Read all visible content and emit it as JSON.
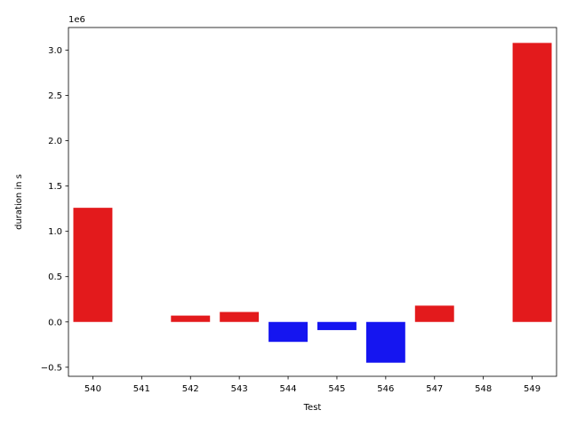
{
  "chart_data": {
    "type": "bar",
    "xlabel": "Test",
    "ylabel": "duration in s",
    "offset_text": "1e6",
    "categories": [
      "540",
      "541",
      "542",
      "543",
      "544",
      "545",
      "546",
      "547",
      "548",
      "549"
    ],
    "values": [
      1260000,
      0,
      70000,
      110000,
      -220000,
      -90000,
      -450000,
      180000,
      0,
      3080000
    ],
    "ylim": [
      -600000,
      3250000
    ],
    "yticks": [
      -500000,
      0,
      500000,
      1000000,
      1500000,
      2000000,
      2500000,
      3000000
    ],
    "ytick_labels": [
      "−0.5",
      "0.0",
      "0.5",
      "1.0",
      "1.5",
      "2.0",
      "2.5",
      "3.0"
    ],
    "grid": false,
    "colors": {
      "positive": "#e31a1c",
      "negative": "#1515f0"
    }
  }
}
